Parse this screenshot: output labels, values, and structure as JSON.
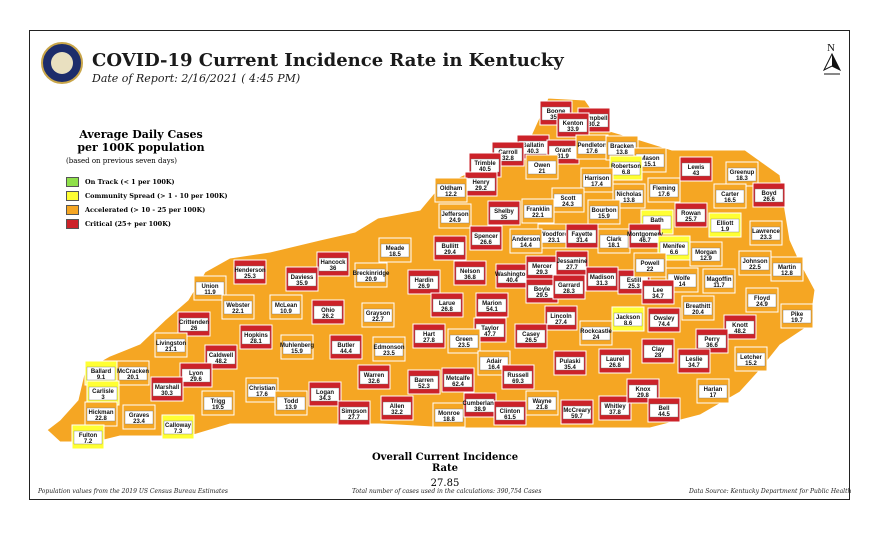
{
  "title": "COVID-19 Current Incidence Rate in Kentucky",
  "report_date": "Date of Report: 2/16/2021 ( 4:45 PM)",
  "legend": {
    "title_line1": "Average Daily Cases",
    "title_line2": "per 100K population",
    "subtitle": "(based on previous seven days)",
    "items": [
      {
        "label": "On Track (< 1 per 100K)",
        "color": "#8fe04a"
      },
      {
        "label": "Community Spread (> 1 - 10 per 100K)",
        "color": "#ffff33"
      },
      {
        "label": "Accelerated (> 10 - 25 per 100K)",
        "color": "#f5a623"
      },
      {
        "label": "Critical (25+ per 100K)",
        "color": "#cc2229"
      }
    ]
  },
  "colors": {
    "on_track": "#8fe04a",
    "community": "#ffff33",
    "accelerated": "#f5a623",
    "critical": "#cc2229"
  },
  "north_arrow": "N",
  "overall": {
    "label": "Overall Current Incidence Rate",
    "value": "27.85"
  },
  "footnotes": {
    "population": "Population values from the 2019 US Census Bureau Estimates",
    "cases": "Total number of cases used in the calculations: 390,754 Cases",
    "source": "Data Source: Kentucky Department for Public Health"
  },
  "counties": [
    {
      "name": "Boone",
      "value": "35.1"
    },
    {
      "name": "Campbell",
      "value": "30.2"
    },
    {
      "name": "Kenton",
      "value": "33.9"
    },
    {
      "name": "Gallatin",
      "value": "40.3"
    },
    {
      "name": "Carroll",
      "value": "32.8"
    },
    {
      "name": "Grant",
      "value": "31.9"
    },
    {
      "name": "Pendleton",
      "value": "17.6"
    },
    {
      "name": "Bracken",
      "value": "13.8"
    },
    {
      "name": "Mason",
      "value": "15.1"
    },
    {
      "name": "Trimble",
      "value": "40.5"
    },
    {
      "name": "Owen",
      "value": "21"
    },
    {
      "name": "Robertson",
      "value": "6.8"
    },
    {
      "name": "Lewis",
      "value": "43"
    },
    {
      "name": "Greenup",
      "value": "18.3"
    },
    {
      "name": "Boyd",
      "value": "26.6"
    },
    {
      "name": "Henry",
      "value": "29.2"
    },
    {
      "name": "Harrison",
      "value": "17.4"
    },
    {
      "name": "Fleming",
      "value": "17.6"
    },
    {
      "name": "Oldham",
      "value": "12.2"
    },
    {
      "name": "Nicholas",
      "value": "13.8"
    },
    {
      "name": "Carter",
      "value": "16.5"
    },
    {
      "name": "Scott",
      "value": "24.3"
    },
    {
      "name": "Bourbon",
      "value": "15.9"
    },
    {
      "name": "Bath",
      "value": "3.4"
    },
    {
      "name": "Rowan",
      "value": "25.7"
    },
    {
      "name": "Elliott",
      "value": "1.9"
    },
    {
      "name": "Jefferson",
      "value": "24.9"
    },
    {
      "name": "Shelby",
      "value": "35"
    },
    {
      "name": "Franklin",
      "value": "22.1"
    },
    {
      "name": "Lawrence",
      "value": "23.3"
    },
    {
      "name": "Spencer",
      "value": "26.6"
    },
    {
      "name": "Woodford",
      "value": "23.1"
    },
    {
      "name": "Fayette",
      "value": "31.4"
    },
    {
      "name": "Clark",
      "value": "18.1"
    },
    {
      "name": "Montgomery",
      "value": "46.7"
    },
    {
      "name": "Menifee",
      "value": "6.6"
    },
    {
      "name": "Morgan",
      "value": "12.9"
    },
    {
      "name": "Johnson",
      "value": "22.5"
    },
    {
      "name": "Martin",
      "value": "12.8"
    },
    {
      "name": "Anderson",
      "value": "14.4"
    },
    {
      "name": "Bullitt",
      "value": "29.4"
    },
    {
      "name": "Meade",
      "value": "18.5"
    },
    {
      "name": "Hancock",
      "value": "36"
    },
    {
      "name": "Henderson",
      "value": "25.3"
    },
    {
      "name": "Daviess",
      "value": "35.9"
    },
    {
      "name": "Breckinridge",
      "value": "20.9"
    },
    {
      "name": "Nelson",
      "value": "36.8"
    },
    {
      "name": "Washington",
      "value": "40.4"
    },
    {
      "name": "Mercer",
      "value": "29.3"
    },
    {
      "name": "Jessamine",
      "value": "27.7"
    },
    {
      "name": "Madison",
      "value": "31.3"
    },
    {
      "name": "Estill",
      "value": "25.3"
    },
    {
      "name": "Powell",
      "value": "22"
    },
    {
      "name": "Wolfe",
      "value": "14"
    },
    {
      "name": "Magoffin",
      "value": "11.7"
    },
    {
      "name": "Floyd",
      "value": "24.9"
    },
    {
      "name": "Pike",
      "value": "19.7"
    },
    {
      "name": "Union",
      "value": "11.9"
    },
    {
      "name": "Webster",
      "value": "22.1"
    },
    {
      "name": "McLean",
      "value": "10.9"
    },
    {
      "name": "Hardin",
      "value": "26.9"
    },
    {
      "name": "Larue",
      "value": "26.8"
    },
    {
      "name": "Marion",
      "value": "54.1"
    },
    {
      "name": "Boyle",
      "value": "29.5"
    },
    {
      "name": "Garrard",
      "value": "28.3"
    },
    {
      "name": "Lee",
      "value": "34.7"
    },
    {
      "name": "Breathitt",
      "value": "20.4"
    },
    {
      "name": "Knott",
      "value": "48.2"
    },
    {
      "name": "Ohio",
      "value": "26.2"
    },
    {
      "name": "Grayson",
      "value": "22.7"
    },
    {
      "name": "Crittenden",
      "value": "26"
    },
    {
      "name": "Hopkins",
      "value": "28.1"
    },
    {
      "name": "Muhlenberg",
      "value": "15.9"
    },
    {
      "name": "Taylor",
      "value": "47.7"
    },
    {
      "name": "Lincoln",
      "value": "27.4"
    },
    {
      "name": "Rockcastle",
      "value": "24"
    },
    {
      "name": "Jackson",
      "value": "8.6"
    },
    {
      "name": "Owsley",
      "value": "74.4"
    },
    {
      "name": "Perry",
      "value": "36.6"
    },
    {
      "name": "Hart",
      "value": "27.8"
    },
    {
      "name": "Green",
      "value": "23.5"
    },
    {
      "name": "Casey",
      "value": "26.5"
    },
    {
      "name": "Clay",
      "value": "28"
    },
    {
      "name": "Letcher",
      "value": "15.2"
    },
    {
      "name": "Livingston",
      "value": "21.1"
    },
    {
      "name": "Caldwell",
      "value": "48.2"
    },
    {
      "name": "Butler",
      "value": "44.4"
    },
    {
      "name": "Edmonson",
      "value": "23.5"
    },
    {
      "name": "Adair",
      "value": "16.4"
    },
    {
      "name": "Pulaski",
      "value": "35.4"
    },
    {
      "name": "Laurel",
      "value": "26.8"
    },
    {
      "name": "Leslie",
      "value": "34.7"
    },
    {
      "name": "Ballard",
      "value": "9.1"
    },
    {
      "name": "McCracken",
      "value": "20.1"
    },
    {
      "name": "Lyon",
      "value": "29.6"
    },
    {
      "name": "Marshall",
      "value": "30.3"
    },
    {
      "name": "Christian",
      "value": "17.6"
    },
    {
      "name": "Warren",
      "value": "32.6"
    },
    {
      "name": "Barren",
      "value": "52.3"
    },
    {
      "name": "Metcalfe",
      "value": "62.4"
    },
    {
      "name": "Russell",
      "value": "69.3"
    },
    {
      "name": "Harlan",
      "value": "17"
    },
    {
      "name": "Carlisle",
      "value": "3"
    },
    {
      "name": "Trigg",
      "value": "19.5"
    },
    {
      "name": "Todd",
      "value": "13.9"
    },
    {
      "name": "Logan",
      "value": "34.3"
    },
    {
      "name": "Simpson",
      "value": "27.7"
    },
    {
      "name": "Allen",
      "value": "32.2"
    },
    {
      "name": "Monroe",
      "value": "18.8"
    },
    {
      "name": "Cumberland",
      "value": "38.9"
    },
    {
      "name": "Clinton",
      "value": "61.5"
    },
    {
      "name": "Wayne",
      "value": "21.8"
    },
    {
      "name": "McCreary",
      "value": "59.7"
    },
    {
      "name": "Whitley",
      "value": "37.8"
    },
    {
      "name": "Knox",
      "value": "29.8"
    },
    {
      "name": "Bell",
      "value": "44.5"
    },
    {
      "name": "Hickman",
      "value": "22.8"
    },
    {
      "name": "Graves",
      "value": "23.4"
    },
    {
      "name": "Calloway",
      "value": "7.3"
    },
    {
      "name": "Fulton",
      "value": "7.2"
    }
  ]
}
